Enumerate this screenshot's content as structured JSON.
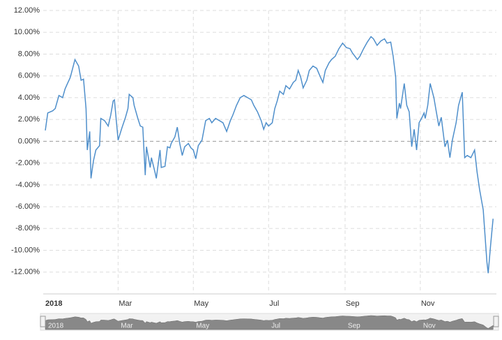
{
  "chart_data": {
    "type": "line",
    "x": [
      0,
      2,
      6,
      8,
      11,
      14,
      16,
      18,
      20,
      21,
      24,
      27,
      29,
      31,
      33,
      34,
      36,
      37,
      39,
      41,
      44,
      45,
      48,
      51,
      53,
      55,
      56,
      59,
      62,
      65,
      67,
      68,
      71,
      72,
      75,
      77,
      79,
      81,
      82,
      85,
      86,
      89,
      90,
      93,
      94,
      97,
      99,
      101,
      102,
      105,
      107,
      109,
      111,
      113,
      116,
      118,
      120,
      122,
      124,
      127,
      130,
      133,
      135,
      138,
      141,
      144,
      147,
      150,
      152,
      155,
      158,
      161,
      164,
      167,
      169,
      172,
      175,
      177,
      179,
      181,
      184,
      186,
      188,
      190,
      193,
      195,
      198,
      201,
      203,
      205,
      207,
      209,
      212,
      214,
      217,
      220,
      223,
      225,
      227,
      230,
      232,
      235,
      238,
      241,
      244,
      247,
      249,
      253,
      255,
      258,
      261,
      264,
      266,
      269,
      272,
      275,
      277,
      280,
      282,
      284,
      285,
      287,
      288,
      291,
      293,
      295,
      297,
      299,
      301,
      303,
      305,
      307,
      308,
      310,
      312,
      315,
      317,
      319,
      321,
      324,
      326,
      328,
      330,
      333,
      335,
      338,
      340,
      342,
      345,
      348,
      350,
      352,
      355,
      357,
      358,
      359,
      361,
      363
    ],
    "series": [
      {
        "color": "#4f8fcb",
        "values": [
          1.0,
          2.6,
          2.8,
          3.0,
          4.2,
          4.0,
          4.8,
          5.3,
          5.8,
          6.2,
          7.5,
          6.9,
          5.6,
          5.7,
          3.0,
          -0.8,
          0.9,
          -3.4,
          -1.8,
          -0.8,
          -0.4,
          2.1,
          1.9,
          1.4,
          2.4,
          3.7,
          3.8,
          0.1,
          1.2,
          2.2,
          3.0,
          4.3,
          4.0,
          3.3,
          2.1,
          1.4,
          1.3,
          -3.1,
          -0.5,
          -2.4,
          -1.5,
          -2.9,
          -3.4,
          -0.8,
          -2.4,
          -2.3,
          -0.5,
          -0.6,
          -0.2,
          0.4,
          1.3,
          -0.2,
          -1.3,
          -0.5,
          -0.2,
          -0.6,
          -0.8,
          -1.6,
          -0.4,
          0.1,
          1.9,
          2.1,
          1.7,
          2.1,
          1.9,
          1.7,
          0.9,
          1.9,
          2.4,
          3.3,
          4.0,
          4.2,
          4.0,
          3.8,
          3.3,
          2.7,
          1.9,
          1.1,
          1.7,
          1.4,
          1.7,
          3.0,
          3.7,
          4.6,
          4.3,
          5.1,
          4.8,
          5.4,
          5.6,
          6.5,
          5.9,
          4.9,
          5.6,
          6.5,
          6.9,
          6.7,
          5.9,
          5.4,
          6.5,
          7.2,
          7.5,
          7.8,
          8.5,
          9.0,
          8.6,
          8.5,
          8.1,
          7.5,
          7.8,
          8.5,
          9.1,
          9.6,
          9.4,
          8.8,
          9.2,
          9.4,
          9.0,
          9.1,
          7.8,
          5.9,
          2.1,
          3.5,
          3.0,
          5.3,
          3.3,
          2.7,
          -0.5,
          1.1,
          -0.8,
          1.7,
          2.1,
          2.6,
          2.1,
          3.3,
          5.3,
          4.0,
          2.7,
          1.4,
          2.2,
          -0.5,
          0.1,
          -1.5,
          0.1,
          1.7,
          3.3,
          4.5,
          -1.5,
          -1.3,
          -1.5,
          -0.8,
          -2.8,
          -4.4,
          -6.3,
          -9.5,
          -11.1,
          -12.1,
          -9.5,
          -7.1
        ]
      }
    ],
    "xlim": [
      0,
      364
    ],
    "xticks": [
      {
        "value": 0,
        "label": "2018"
      },
      {
        "value": 59,
        "label": "Mar"
      },
      {
        "value": 120,
        "label": "May"
      },
      {
        "value": 181,
        "label": "Jul"
      },
      {
        "value": 243,
        "label": "Sep"
      },
      {
        "value": 304,
        "label": "Nov"
      }
    ],
    "ylim": [
      -14,
      12
    ],
    "yticks": [
      {
        "value": -12,
        "label": "-12.00%"
      },
      {
        "value": -10,
        "label": "-10.00%"
      },
      {
        "value": -8,
        "label": "-8.00%"
      },
      {
        "value": -6,
        "label": "-6.00%"
      },
      {
        "value": -4,
        "label": "-4.00%"
      },
      {
        "value": -2,
        "label": "-2.00%"
      },
      {
        "value": 0,
        "label": "0.00%"
      },
      {
        "value": 2,
        "label": "2.00%"
      },
      {
        "value": 4,
        "label": "4.00%"
      },
      {
        "value": 6,
        "label": "6.00%"
      },
      {
        "value": 8,
        "label": "8.00%"
      },
      {
        "value": 10,
        "label": "10.00%"
      },
      {
        "value": 12,
        "label": "12.00%"
      }
    ],
    "grid": true
  }
}
